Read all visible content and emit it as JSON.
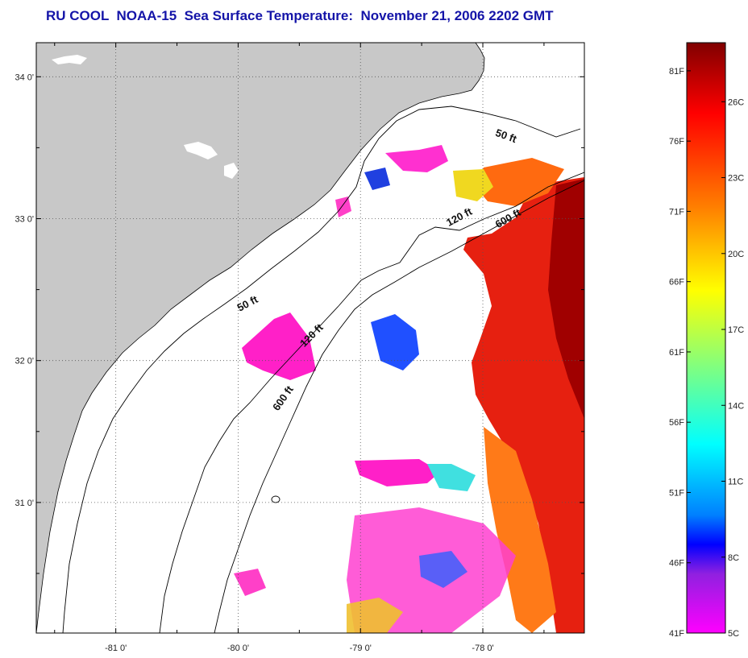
{
  "title": "RU COOL  NOAA-15  Sea Surface Temperature:  November 21, 2006 2202 GMT",
  "map": {
    "lon_range": [
      -81.65,
      -77.17
    ],
    "lat_range": [
      30.08,
      34.24
    ],
    "lon_ticks": [
      {
        "value": -81,
        "label": "-81 0'"
      },
      {
        "value": -80,
        "label": "-80 0'"
      },
      {
        "value": -79,
        "label": "-79 0'"
      },
      {
        "value": -78,
        "label": "-78 0'"
      }
    ],
    "lat_ticks": [
      {
        "value": 34,
        "label": "34 0'"
      },
      {
        "value": 33,
        "label": "33 0'"
      },
      {
        "value": 32,
        "label": "32 0'"
      },
      {
        "value": 31,
        "label": "31 0'"
      }
    ],
    "contours": [
      {
        "label": "50 ft",
        "label_lon": -77.82,
        "label_lat": 33.56,
        "rotate": 20
      },
      {
        "label": "120 ft",
        "label_lon": -78.18,
        "label_lat": 32.99,
        "rotate": -28
      },
      {
        "label": "600 ft",
        "label_lon": -77.78,
        "label_lat": 32.98,
        "rotate": -30
      },
      {
        "label": "50 ft",
        "label_lon": -79.91,
        "label_lat": 32.38,
        "rotate": -28
      },
      {
        "label": "120 ft",
        "label_lon": -79.38,
        "label_lat": 32.16,
        "rotate": -45
      },
      {
        "label": "600 ft",
        "label_lon": -79.61,
        "label_lat": 31.72,
        "rotate": -55
      }
    ],
    "colors": {
      "land": "#c8c8c8",
      "ocean_no_data": "#ffffff",
      "title": "#1414a8"
    }
  },
  "colorbar": {
    "fahrenheit_labels": [
      {
        "value": 81,
        "label": "81F"
      },
      {
        "value": 76,
        "label": "76F"
      },
      {
        "value": 71,
        "label": "71F"
      },
      {
        "value": 66,
        "label": "66F"
      },
      {
        "value": 61,
        "label": "61F"
      },
      {
        "value": 56,
        "label": "56F"
      },
      {
        "value": 51,
        "label": "51F"
      },
      {
        "value": 46,
        "label": "46F"
      },
      {
        "value": 41,
        "label": "41F"
      }
    ],
    "celsius_labels": [
      {
        "value": 26,
        "label": "26C"
      },
      {
        "value": 23,
        "label": "23C"
      },
      {
        "value": 20,
        "label": "20C"
      },
      {
        "value": 17,
        "label": "17C"
      },
      {
        "value": 14,
        "label": "14C"
      },
      {
        "value": 11,
        "label": "11C"
      },
      {
        "value": 8,
        "label": "8C"
      },
      {
        "value": 5,
        "label": "5C"
      }
    ],
    "range_f": [
      41,
      83
    ],
    "stops": [
      {
        "offset": 0,
        "color": "#800000"
      },
      {
        "offset": 0.12,
        "color": "#ff0000"
      },
      {
        "offset": 0.28,
        "color": "#ff8000"
      },
      {
        "offset": 0.42,
        "color": "#ffff00"
      },
      {
        "offset": 0.55,
        "color": "#80ff80"
      },
      {
        "offset": 0.68,
        "color": "#00ffff"
      },
      {
        "offset": 0.8,
        "color": "#0080ff"
      },
      {
        "offset": 0.85,
        "color": "#0000ff"
      },
      {
        "offset": 0.9,
        "color": "#9020e0"
      },
      {
        "offset": 1,
        "color": "#ff00ff"
      }
    ]
  }
}
